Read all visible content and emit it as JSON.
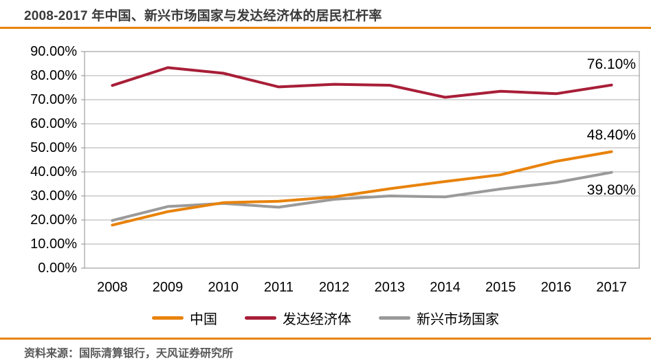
{
  "header": {
    "title": "2008-2017 年中国、新兴市场国家与发达经济体的居民杠杆率"
  },
  "footer": {
    "source": "资料来源：国际清算银行，天风证券研究所"
  },
  "theme": {
    "accent_orange": "#E8830C",
    "series_china": "#E8830C",
    "series_developed": "#A81E38",
    "series_emerging": "#9A9A9A",
    "gridline": "#ACACAC",
    "axis_border": "#8C8C8C",
    "title_color": "#3B3B3B",
    "source_color": "#595959",
    "tick_text_color": "#000000"
  },
  "chart_data": {
    "type": "line",
    "title": "2008-2017 年中国、新兴市场国家与发达经济体的居民杠杆率",
    "categories": [
      "2008",
      "2009",
      "2010",
      "2011",
      "2012",
      "2013",
      "2014",
      "2015",
      "2016",
      "2017"
    ],
    "series": [
      {
        "name": "中国",
        "color": "#E8830C",
        "values": [
          17.9,
          23.5,
          27.2,
          27.8,
          29.6,
          33.0,
          36.0,
          38.8,
          44.4,
          48.4
        ]
      },
      {
        "name": "发达经济体",
        "color": "#A81E38",
        "values": [
          75.9,
          83.3,
          81.0,
          75.3,
          76.4,
          76.0,
          71.0,
          73.5,
          72.5,
          76.1
        ]
      },
      {
        "name": "新兴市场国家",
        "color": "#9A9A9A",
        "values": [
          19.8,
          25.6,
          26.9,
          25.3,
          28.6,
          30.0,
          29.6,
          32.9,
          35.6,
          39.8
        ]
      }
    ],
    "xlabel": "",
    "ylabel": "",
    "ylim": [
      0,
      90
    ],
    "ytick_step": 10,
    "yticks": [
      "0.00%",
      "10.00%",
      "20.00%",
      "30.00%",
      "40.00%",
      "50.00%",
      "60.00%",
      "70.00%",
      "80.00%",
      "90.00%"
    ],
    "grid": "horizontal",
    "legend_position": "bottom",
    "annotations": [
      {
        "text": "76.10%",
        "series": "发达经济体",
        "y_center_value": 84.5
      },
      {
        "text": "48.40%",
        "series": "中国",
        "y_center_value": 55.2
      },
      {
        "text": "39.80%",
        "series": "新兴市场国家",
        "y_center_value": 32.3
      }
    ]
  }
}
